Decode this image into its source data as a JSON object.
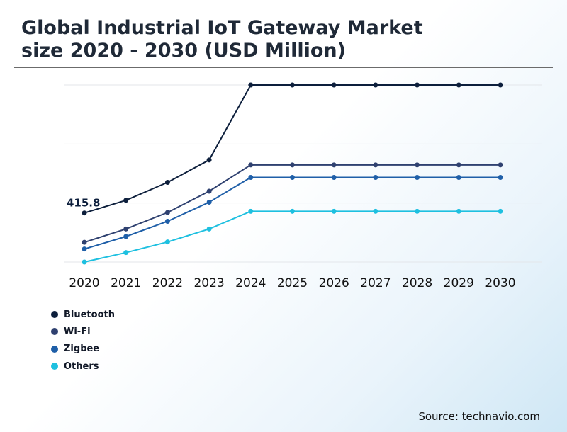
{
  "title": "Global Industrial IoT Gateway Market\nsize 2020 - 2030 (USD Million)",
  "source": "Source: technavio.com",
  "chart_data": {
    "type": "line",
    "title": "Global Industrial IoT Gateway Market size 2020 - 2030 (USD Million)",
    "xlabel": "",
    "ylabel": "",
    "x": [
      "2020",
      "2021",
      "2022",
      "2023",
      "2024",
      "2025",
      "2026",
      "2027",
      "2028",
      "2029",
      "2030"
    ],
    "ylim": [
      0,
      1500
    ],
    "grid": true,
    "legend_position": "bottom-left",
    "annotations": [
      {
        "series": "Bluetooth",
        "x": "2020",
        "text": "415.8"
      }
    ],
    "series": [
      {
        "name": "Bluetooth",
        "color": "#0d1f3c",
        "values": [
          415.8,
          523,
          675,
          865,
          1500,
          1500,
          1500,
          1500,
          1500,
          1500,
          1500
        ]
      },
      {
        "name": "Wi-Fi",
        "color": "#2f4170",
        "values": [
          167,
          280,
          420,
          600,
          823,
          823,
          823,
          823,
          823,
          823,
          823
        ]
      },
      {
        "name": "Zigbee",
        "color": "#1f5fa8",
        "values": [
          110,
          216,
          345,
          507,
          717,
          717,
          717,
          717,
          717,
          717,
          717
        ]
      },
      {
        "name": "Others",
        "color": "#1ec0e0",
        "values": [
          0,
          80,
          170,
          280,
          430,
          430,
          430,
          430,
          430,
          430,
          430
        ]
      }
    ]
  }
}
